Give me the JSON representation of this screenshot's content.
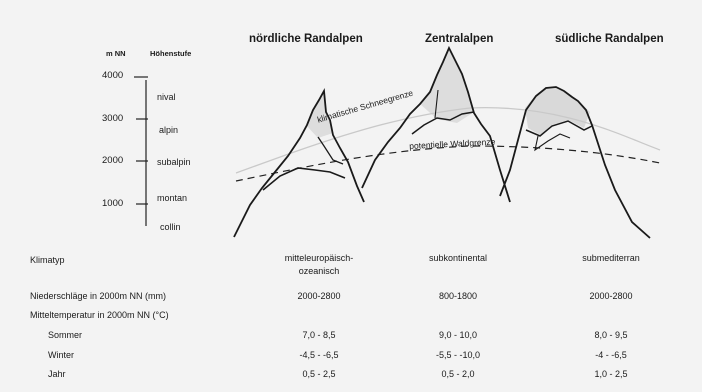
{
  "axis": {
    "unit_label": "m NN",
    "zone_label": "Höhenstufe",
    "ticks": [
      "4000",
      "3000",
      "2000",
      "1000"
    ],
    "zones": [
      "nival",
      "alpin",
      "subalpin",
      "montan",
      "collin"
    ]
  },
  "regions": [
    {
      "title": "nördliche Randalpen",
      "klimatyp": "mitteleuropäisch-\nozeanisch",
      "niederschlag": "2000-2800",
      "sommer": "7,0 - 8,5",
      "winter": "-4,5 - -6,5",
      "jahr": "0,5 - 2,5"
    },
    {
      "title": "Zentralalpen",
      "klimatyp": "subkontinental",
      "niederschlag": "800-1800",
      "sommer": "9,0 - 10,0",
      "winter": "-5,5 - -10,0",
      "jahr": "0,5 - 2,0"
    },
    {
      "title": "südliche Randalpen",
      "klimatyp": "submediterran",
      "niederschlag": "2000-2800",
      "sommer": "8,0 - 9,5",
      "winter": "-4 - -6,5",
      "jahr": "1,0 - 2,5"
    }
  ],
  "lines": {
    "snow": "klimatische Schneegrenze",
    "forest": "potentielle Waldgrenze"
  },
  "rows": {
    "klimatyp": "Klimatyp",
    "niederschlag": "Niederschläge in 2000m NN (mm)",
    "mitteltemp": "Mitteltemperatur in 2000m NN (°C)",
    "sommer": "Sommer",
    "winter": "Winter",
    "jahr": "Jahr"
  },
  "colors": {
    "background": "#f3f3f3",
    "ink": "#1a1a1a",
    "snow_shading": "#dcdcdc"
  }
}
